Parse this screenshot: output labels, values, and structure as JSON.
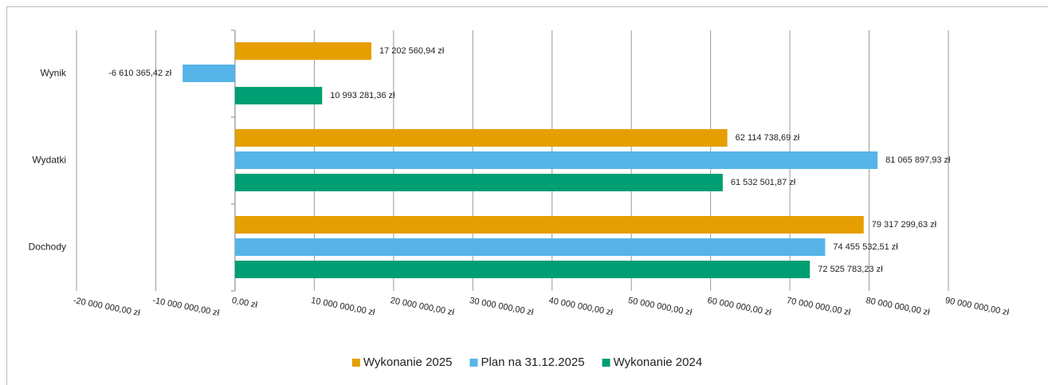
{
  "chart_data": {
    "type": "bar",
    "orientation": "horizontal",
    "categories": [
      "Wynik",
      "Wydatki",
      "Dochody"
    ],
    "series": [
      {
        "name": "Wykonanie 2025",
        "color": "#e69f00",
        "values": [
          17202560.94,
          62114738.69,
          79317299.63
        ],
        "value_labels": [
          "17 202 560,94 zł",
          "62 114 738,69 zł",
          "79 317 299,63 zł"
        ]
      },
      {
        "name": "Plan na 31.12.2025",
        "color": "#56b4e9",
        "values": [
          -6610365.42,
          81065897.93,
          74455532.51
        ],
        "value_labels": [
          "-6 610 365,42 zł",
          "81 065 897,93 zł",
          "74 455 532,51 zł"
        ]
      },
      {
        "name": "Wykonanie 2024",
        "color": "#009e73",
        "values": [
          10993281.36,
          61532501.87,
          72525783.23
        ],
        "value_labels": [
          "10 993 281,36 zł",
          "61 532 501,87 zł",
          "72 525 783,23 zł"
        ]
      }
    ],
    "xlim": [
      -20000000,
      90000000
    ],
    "xticks": [
      {
        "value": -20000000,
        "label": "-20 000 000,00 zł"
      },
      {
        "value": -10000000,
        "label": "-10 000 000,00 zł"
      },
      {
        "value": 0,
        "label": "0,00 zł"
      },
      {
        "value": 10000000,
        "label": "10 000 000,00 zł"
      },
      {
        "value": 20000000,
        "label": "20 000 000,00 zł"
      },
      {
        "value": 30000000,
        "label": "30 000 000,00 zł"
      },
      {
        "value": 40000000,
        "label": "40 000 000,00 zł"
      },
      {
        "value": 50000000,
        "label": "50 000 000,00 zł"
      },
      {
        "value": 60000000,
        "label": "60 000 000,00 zł"
      },
      {
        "value": 70000000,
        "label": "70 000 000,00 zł"
      },
      {
        "value": 80000000,
        "label": "80 000 000,00 zł"
      },
      {
        "value": 90000000,
        "label": "90 000 000,00 zł"
      }
    ],
    "grid": true,
    "legend": "bottom"
  }
}
